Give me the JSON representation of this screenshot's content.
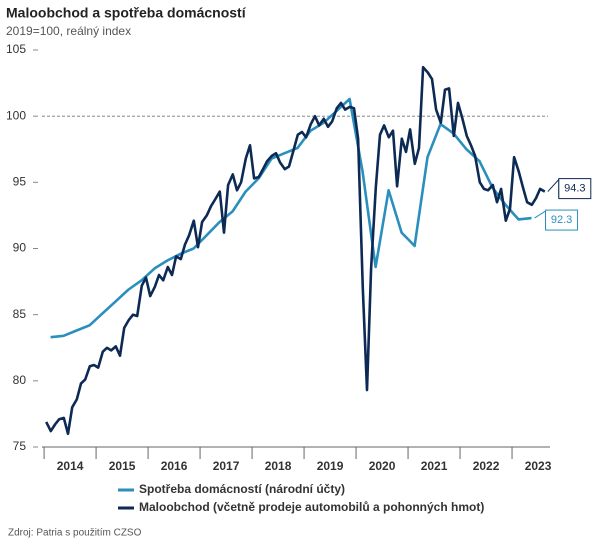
{
  "chart_data": {
    "type": "line",
    "title": "Maloobchod a spotřeba domácností",
    "subtitle": "2019=100, reálný index",
    "source": "Zdroj: Patria s použitím CZSO",
    "xlim": [
      2013.96,
      2023.73
    ],
    "xticks": [
      {
        "value": 2014.5,
        "label": "2014"
      },
      {
        "value": 2015.5,
        "label": "2015"
      },
      {
        "value": 2016.5,
        "label": "2016"
      },
      {
        "value": 2017.5,
        "label": "2017"
      },
      {
        "value": 2018.5,
        "label": "2018"
      },
      {
        "value": 2019.5,
        "label": "2019"
      },
      {
        "value": 2020.5,
        "label": "2020"
      },
      {
        "value": 2021.5,
        "label": "2021"
      },
      {
        "value": 2022.5,
        "label": "2022"
      },
      {
        "value": 2023.5,
        "label": "2023"
      }
    ],
    "ylim": [
      75,
      105
    ],
    "yticks": [
      75,
      80,
      85,
      90,
      95,
      100,
      105
    ],
    "hline": 100,
    "series": [
      {
        "name": "Spotřeba domácností (národní účty)",
        "color": "#2a8fbd",
        "x": [
          2014.125,
          2014.375,
          2014.625,
          2014.875,
          2015.125,
          2015.375,
          2015.625,
          2015.875,
          2016.125,
          2016.375,
          2016.625,
          2016.875,
          2017.125,
          2017.375,
          2017.625,
          2017.875,
          2018.125,
          2018.375,
          2018.625,
          2018.875,
          2019.125,
          2019.375,
          2019.625,
          2019.875,
          2020.125,
          2020.375,
          2020.625,
          2020.875,
          2021.125,
          2021.375,
          2021.625,
          2021.875,
          2022.125,
          2022.375,
          2022.625,
          2022.875,
          2023.125,
          2023.375
        ],
        "values": [
          83.3,
          83.4,
          83.8,
          84.2,
          85.1,
          86.0,
          86.9,
          87.6,
          88.5,
          89.1,
          89.6,
          90.0,
          91.0,
          92.0,
          92.8,
          94.3,
          95.3,
          96.8,
          97.2,
          97.6,
          98.9,
          99.5,
          100.4,
          101.3,
          95.8,
          88.6,
          94.4,
          91.2,
          90.2,
          96.9,
          99.4,
          98.7,
          97.5,
          96.6,
          94.6,
          93.3,
          92.2,
          92.3
        ]
      },
      {
        "name": "Maloobchod (včetně prodeje automobilů a pohonných hmot)",
        "color": "#0d2a55",
        "x": [
          2014.04,
          2014.13,
          2014.21,
          2014.29,
          2014.38,
          2014.46,
          2014.54,
          2014.63,
          2014.71,
          2014.79,
          2014.88,
          2014.96,
          2015.04,
          2015.13,
          2015.21,
          2015.29,
          2015.38,
          2015.46,
          2015.54,
          2015.63,
          2015.71,
          2015.79,
          2015.88,
          2015.96,
          2016.04,
          2016.13,
          2016.21,
          2016.29,
          2016.38,
          2016.46,
          2016.54,
          2016.63,
          2016.71,
          2016.79,
          2016.88,
          2016.96,
          2017.04,
          2017.13,
          2017.21,
          2017.29,
          2017.38,
          2017.46,
          2017.54,
          2017.63,
          2017.71,
          2017.79,
          2017.88,
          2017.96,
          2018.04,
          2018.13,
          2018.21,
          2018.29,
          2018.38,
          2018.46,
          2018.54,
          2018.63,
          2018.71,
          2018.79,
          2018.88,
          2018.96,
          2019.04,
          2019.13,
          2019.21,
          2019.29,
          2019.38,
          2019.46,
          2019.54,
          2019.63,
          2019.71,
          2019.79,
          2019.88,
          2019.96,
          2020.04,
          2020.13,
          2020.21,
          2020.29,
          2020.38,
          2020.46,
          2020.54,
          2020.63,
          2020.71,
          2020.79,
          2020.88,
          2020.96,
          2021.04,
          2021.13,
          2021.21,
          2021.29,
          2021.38,
          2021.46,
          2021.54,
          2021.63,
          2021.71,
          2021.79,
          2021.88,
          2021.96,
          2022.04,
          2022.13,
          2022.21,
          2022.29,
          2022.38,
          2022.46,
          2022.54,
          2022.63,
          2022.71,
          2022.79,
          2022.88,
          2022.96,
          2023.04,
          2023.13,
          2023.21,
          2023.29,
          2023.38,
          2023.46,
          2023.54,
          2023.63
        ],
        "values": [
          76.9,
          76.2,
          76.7,
          77.1,
          77.2,
          76.0,
          78.0,
          78.6,
          79.8,
          80.1,
          81.1,
          81.2,
          81.0,
          82.2,
          82.5,
          82.3,
          82.6,
          81.9,
          84.0,
          84.6,
          85.0,
          84.9,
          87.2,
          87.8,
          86.4,
          87.1,
          88.0,
          87.6,
          88.6,
          88.0,
          89.4,
          89.2,
          90.3,
          91.0,
          92.1,
          90.1,
          92.0,
          92.5,
          93.2,
          93.7,
          94.3,
          91.2,
          94.8,
          95.6,
          94.4,
          95.0,
          96.8,
          97.8,
          95.3,
          95.4,
          96.0,
          96.6,
          97.0,
          97.2,
          96.5,
          96.0,
          96.2,
          97.3,
          98.6,
          98.8,
          98.4,
          99.4,
          100.0,
          99.3,
          99.8,
          99.2,
          99.6,
          100.6,
          101.0,
          100.5,
          100.7,
          100.6,
          98.3,
          87.0,
          79.3,
          88.5,
          94.6,
          98.6,
          99.3,
          98.4,
          98.9,
          94.7,
          98.3,
          97.3,
          99.0,
          96.4,
          97.6,
          103.7,
          103.3,
          102.8,
          100.5,
          99.5,
          102.0,
          102.1,
          98.5,
          101.0,
          99.9,
          98.5,
          97.8,
          97.0,
          95.0,
          94.5,
          94.4,
          94.8,
          93.5,
          94.5,
          92.1,
          93.0,
          96.9,
          95.8,
          94.6,
          93.5,
          93.3,
          93.8,
          94.5,
          94.3
        ]
      }
    ]
  }
}
